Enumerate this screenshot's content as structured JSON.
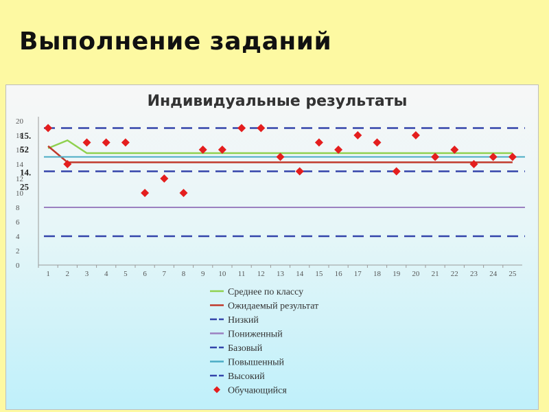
{
  "slide_title": "Выполнение заданий",
  "chart_data": {
    "type": "line",
    "title": "Индивидуальные результаты",
    "x": [
      1,
      2,
      3,
      4,
      5,
      6,
      7,
      8,
      9,
      10,
      11,
      12,
      13,
      14,
      15,
      16,
      17,
      18,
      19,
      20,
      21,
      22,
      23,
      24,
      25
    ],
    "x_labels": [
      "1",
      "2",
      "3",
      "4",
      "5",
      "6",
      "7",
      "8",
      "9",
      "10",
      "11",
      "12",
      "13",
      "14",
      "15",
      "16",
      "17",
      "18",
      "19",
      "20",
      "21",
      "22",
      "23",
      "24",
      "25"
    ],
    "y_ticks": [
      "0",
      "2",
      "4",
      "6",
      "8",
      "10",
      "12",
      "14",
      "16",
      "18",
      "20"
    ],
    "ylim": [
      0,
      20
    ],
    "annotations": [
      {
        "text": "15.",
        "y": 17.9
      },
      {
        "text": "52",
        "y": 16.0
      },
      {
        "text": "14.",
        "y": 12.8
      },
      {
        "text": "25",
        "y": 10.8
      }
    ],
    "series": [
      {
        "name": "Среднее по классу",
        "color": "#8fd14f",
        "style": "solid",
        "points": [
          [
            1,
            16.2
          ],
          [
            2,
            17.3
          ],
          [
            3,
            15.52
          ],
          [
            4,
            15.52
          ],
          [
            5,
            15.52
          ],
          [
            6,
            15.52
          ],
          [
            7,
            15.52
          ],
          [
            8,
            15.52
          ],
          [
            9,
            15.52
          ],
          [
            10,
            15.52
          ],
          [
            11,
            15.52
          ],
          [
            12,
            15.52
          ],
          [
            13,
            15.52
          ],
          [
            14,
            15.52
          ],
          [
            15,
            15.52
          ],
          [
            16,
            15.52
          ],
          [
            17,
            15.52
          ],
          [
            18,
            15.52
          ],
          [
            19,
            15.52
          ],
          [
            20,
            15.52
          ],
          [
            21,
            15.52
          ],
          [
            22,
            15.52
          ],
          [
            23,
            15.52
          ],
          [
            24,
            15.52
          ],
          [
            25,
            15.52
          ]
        ]
      },
      {
        "name": "Ожидаемый результат",
        "color": "#c0392b",
        "style": "solid",
        "points": [
          [
            1,
            16.5
          ],
          [
            2,
            14.25
          ],
          [
            3,
            14.25
          ],
          [
            4,
            14.25
          ],
          [
            5,
            14.25
          ],
          [
            6,
            14.25
          ],
          [
            7,
            14.25
          ],
          [
            8,
            14.25
          ],
          [
            9,
            14.25
          ],
          [
            10,
            14.25
          ],
          [
            11,
            14.25
          ],
          [
            12,
            14.25
          ],
          [
            13,
            14.25
          ],
          [
            14,
            14.25
          ],
          [
            15,
            14.25
          ],
          [
            16,
            14.25
          ],
          [
            17,
            14.25
          ],
          [
            18,
            14.25
          ],
          [
            19,
            14.25
          ],
          [
            20,
            14.25
          ],
          [
            21,
            14.25
          ],
          [
            22,
            14.25
          ],
          [
            23,
            14.25
          ],
          [
            24,
            14.25
          ],
          [
            25,
            14.25
          ]
        ]
      },
      {
        "name": "Низкий",
        "color": "#3344aa",
        "style": "dashed",
        "y": 4
      },
      {
        "name": "Пониженный",
        "color": "#9b80c0",
        "style": "solid",
        "y": 8
      },
      {
        "name": "Базовый",
        "color": "#3344aa",
        "style": "dashed",
        "y": 13
      },
      {
        "name": "Повышенный",
        "color": "#4aacc5",
        "style": "solid",
        "y": 15
      },
      {
        "name": "Высокий",
        "color": "#3344aa",
        "style": "dashed",
        "y": 19
      },
      {
        "name": "Обучающийся",
        "color": "#e41e1e",
        "style": "marker",
        "values": [
          19,
          14,
          17,
          17,
          17,
          10,
          12,
          10,
          16,
          16,
          19,
          19,
          15,
          13,
          17,
          16,
          18,
          17,
          13,
          18,
          15,
          16,
          14,
          15,
          15
        ]
      }
    ]
  }
}
